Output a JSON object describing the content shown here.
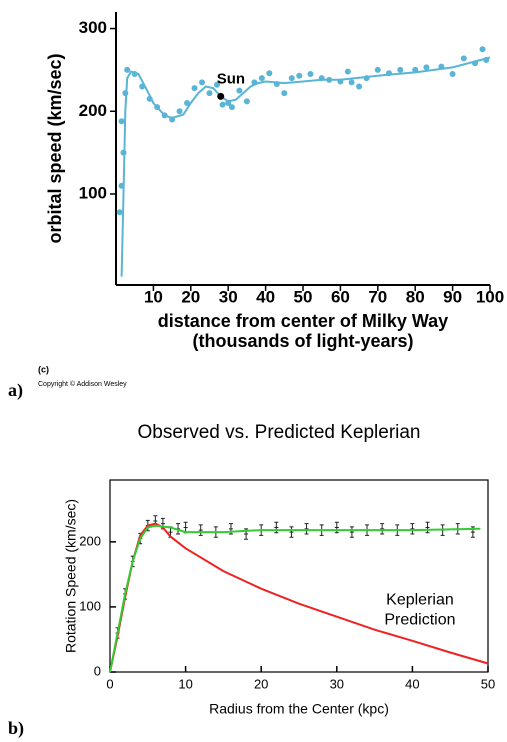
{
  "labels": {
    "panel_c": "(c)",
    "copyright": "Copyright © Addison Wesley",
    "panel_a": "a)",
    "panel_b": "b)"
  },
  "chart_data": [
    {
      "type": "scatter",
      "ylabel": "orbital speed (km/sec)",
      "xlabel": "distance from center of Milky Way",
      "xlabel_sub": "(thousands of light-years)",
      "xlim": [
        0,
        100
      ],
      "xticks": [
        10,
        20,
        30,
        40,
        50,
        60,
        70,
        80,
        90,
        100
      ],
      "ylim": [
        -10,
        320
      ],
      "yticks": [
        100,
        200,
        300
      ],
      "series": [
        {
          "style": "markers",
          "color": "#5ab4d6",
          "x": [
            1,
            1.5,
            1.5,
            2,
            2.5,
            3,
            5,
            7,
            9,
            11,
            13,
            15,
            17,
            19,
            21,
            23,
            25,
            27,
            28.5,
            30,
            31,
            33,
            35,
            37,
            39,
            41,
            43,
            45,
            47,
            49,
            52,
            55,
            57,
            60,
            62,
            63,
            65,
            67,
            70,
            73,
            76,
            80,
            83,
            87,
            90,
            93,
            96,
            98,
            99
          ],
          "values": [
            78,
            110,
            188,
            150,
            222,
            250,
            245,
            230,
            215,
            205,
            195,
            190,
            200,
            210,
            228,
            235,
            222,
            232,
            208,
            210,
            205,
            225,
            212,
            235,
            240,
            246,
            233,
            222,
            240,
            243,
            245,
            240,
            238,
            236,
            248,
            235,
            230,
            240,
            250,
            246,
            250,
            250,
            253,
            254,
            245,
            264,
            258,
            275,
            262
          ]
        },
        {
          "style": "line",
          "color": "#5ab4d6",
          "x": [
            1.5,
            2,
            2.5,
            3,
            4,
            6,
            8,
            10,
            13,
            15,
            18,
            20,
            22,
            24,
            26,
            28,
            30,
            32,
            34,
            36,
            38,
            40,
            45,
            50,
            55,
            60,
            70,
            80,
            90,
            100
          ],
          "values": [
            0,
            100,
            200,
            240,
            248,
            245,
            228,
            210,
            195,
            192,
            196,
            210,
            222,
            230,
            228,
            218,
            212,
            214,
            222,
            230,
            234,
            236,
            234,
            236,
            238,
            238,
            243,
            247,
            253,
            265
          ]
        }
      ],
      "annotations": [
        {
          "text": "Sun",
          "x": 28,
          "y": 218,
          "color": "#000"
        }
      ]
    },
    {
      "type": "line",
      "title": "Observed vs. Predicted Keplerian",
      "xlabel": "Radius from the Center (kpc)",
      "ylabel": "Rotation Speed (km/sec)",
      "xlim": [
        0,
        50
      ],
      "xticks": [
        0,
        10,
        20,
        30,
        40,
        50
      ],
      "ylim": [
        0,
        295
      ],
      "yticks": [
        0,
        100,
        200
      ],
      "series": [
        {
          "style": "errorbar",
          "color": "#222",
          "x": [
            1,
            2,
            3,
            4,
            5,
            6,
            7,
            8,
            9,
            10,
            12,
            14,
            16,
            18,
            20,
            22,
            24,
            26,
            28,
            30,
            32,
            34,
            36,
            38,
            40,
            42,
            44,
            46,
            48
          ],
          "values": [
            60,
            120,
            170,
            205,
            225,
            232,
            228,
            215,
            220,
            222,
            218,
            215,
            220,
            212,
            218,
            222,
            215,
            220,
            218,
            222,
            215,
            218,
            220,
            218,
            220,
            222,
            218,
            220,
            215
          ],
          "errors": [
            8,
            8,
            8,
            8,
            8,
            8,
            8,
            8,
            8,
            8,
            8,
            8,
            8,
            8,
            8,
            8,
            8,
            8,
            8,
            8,
            8,
            8,
            8,
            8,
            8,
            8,
            8,
            8,
            8
          ]
        },
        {
          "style": "line",
          "color": "#ee2222",
          "x": [
            0,
            1,
            2,
            3,
            4,
            5,
            6,
            7,
            8,
            10,
            15,
            20,
            25,
            30,
            35,
            40,
            45,
            50
          ],
          "values": [
            0,
            55,
            115,
            170,
            210,
            225,
            228,
            222,
            208,
            190,
            155,
            128,
            105,
            85,
            65,
            48,
            30,
            13
          ]
        },
        {
          "style": "line",
          "color": "#33cc33",
          "x": [
            0,
            1,
            2,
            3,
            4,
            5,
            6,
            8,
            10,
            15,
            20,
            30,
            40,
            49
          ],
          "values": [
            0,
            60,
            120,
            170,
            205,
            222,
            225,
            222,
            215,
            215,
            218,
            218,
            218,
            220
          ]
        }
      ],
      "annotation_lines": [
        "Keplerian",
        "Prediction"
      ],
      "annotation_color": "#ee2222",
      "annotation_x": 41,
      "annotation_y": 110
    }
  ]
}
